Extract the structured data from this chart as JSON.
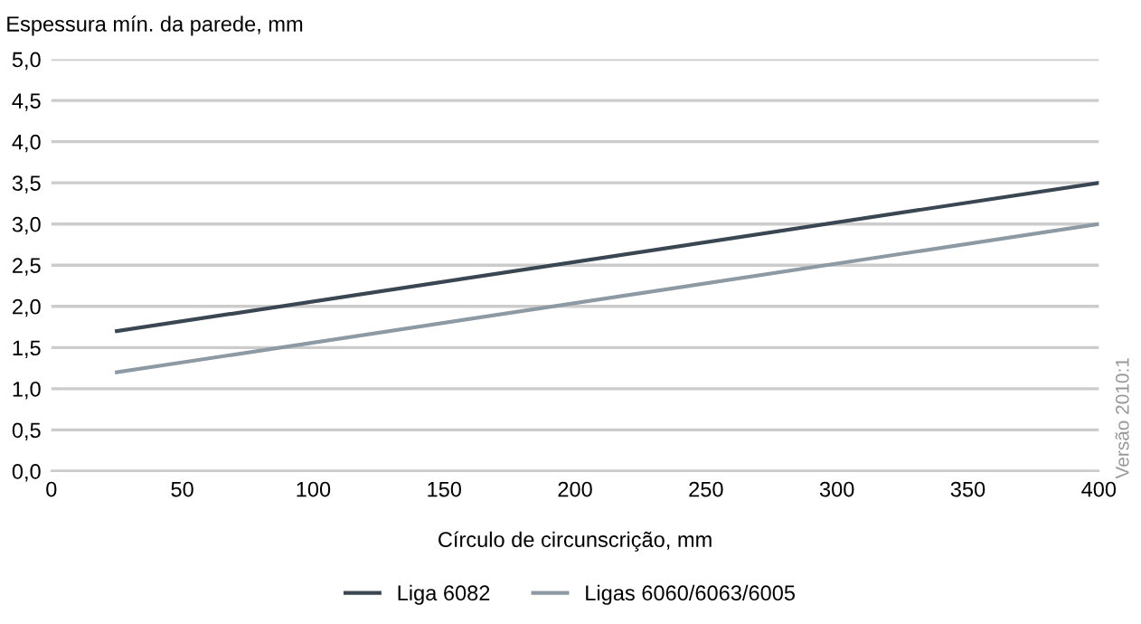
{
  "chart_data": {
    "type": "line",
    "ylabel": "Espessura mín. da parede, mm",
    "xlabel": "Círculo de circunscrição, mm",
    "xlim": [
      0,
      400
    ],
    "xticks": [
      0,
      50,
      100,
      150,
      200,
      250,
      300,
      350,
      400
    ],
    "ylim": [
      0,
      5
    ],
    "yticks": [
      {
        "value": 0,
        "label": "0,0"
      },
      {
        "value": 0.5,
        "label": "0,5"
      },
      {
        "value": 1,
        "label": "1,0"
      },
      {
        "value": 1.5,
        "label": "1,5"
      },
      {
        "value": 2,
        "label": "2,0"
      },
      {
        "value": 2.5,
        "label": "2,5"
      },
      {
        "value": 3,
        "label": "3,0"
      },
      {
        "value": 3.5,
        "label": "3,5"
      },
      {
        "value": 4,
        "label": "4,0"
      },
      {
        "value": 4.5,
        "label": "4,5"
      },
      {
        "value": 5,
        "label": "5,0"
      }
    ],
    "grid": "y",
    "legend": "bottom",
    "marker": "none",
    "line_style": "solid",
    "annotations": [
      "Versão 2010:1"
    ],
    "x": [
      25,
      400
    ],
    "series": [
      {
        "name": "Liga 6082",
        "color": "#3a4752",
        "values": [
          1.7,
          3.5
        ]
      },
      {
        "name": "Ligas 6060/6063/6005",
        "color": "#8e9aa3",
        "values": [
          1.2,
          3.0
        ]
      }
    ]
  }
}
